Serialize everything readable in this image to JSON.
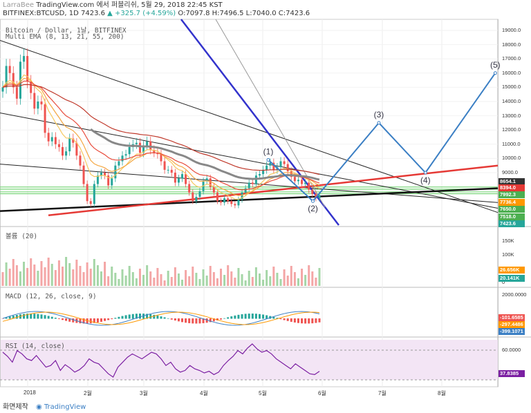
{
  "header": {
    "line1_user": "LarraBee",
    "line1_text": "TradingView.com 에서 퍼블리쉬, 5월 29, 2018 22:45 KST",
    "symbol": "BITFINEX:BTCUSD, 1D",
    "last": "7423.6",
    "change": "▲ +325.7 (+4.59%)",
    "ohlc": "O:7097.8 H:7496.5 L:7040.0 C:7423.6"
  },
  "price_legend": {
    "title": "Bitcoin / Dollar, 1날, BITFINEX",
    "ema": "Multi EMA (8, 13, 21, 55, 200)"
  },
  "volume_legend": "볼륨 (20)",
  "macd_legend": "MACD (12, 26, close, 9)",
  "rsi_legend": "RSI (14, close)",
  "footer": {
    "left": "화면제작",
    "brand": "TradingView"
  },
  "colors": {
    "up": "#26a69a",
    "down": "#ef5350",
    "wave": "#3b7fc4",
    "trend_red": "#e53935",
    "trend_blue": "#3333cc",
    "ema200": "#888888",
    "support_green": "#7bd67b"
  },
  "chart_data": [
    {
      "type": "candlestick",
      "title": "Bitcoin / Dollar, 1날, BITFINEX",
      "y_ticks": [
        "19000.0",
        "18000.0",
        "17000.0",
        "16000.0",
        "15000.0",
        "14000.0",
        "13000.0",
        "12000.0",
        "11000.0",
        "10000.0",
        "9000.0"
      ],
      "price_boxes": [
        {
          "label": "8654.1",
          "color": "#333333"
        },
        {
          "label": "8394.0",
          "color": "#e53935"
        },
        {
          "label": "7992.3",
          "color": "#4caf50"
        },
        {
          "label": "7736.4",
          "color": "#ff9800"
        },
        {
          "label": "7650.0",
          "color": "#4caf50"
        },
        {
          "label": "7518.0",
          "color": "#4caf50"
        },
        {
          "label": "7423.6",
          "color": "#26a69a"
        }
      ],
      "x_ticks": [
        "2018",
        "2월",
        "3월",
        "4월",
        "5월",
        "6월",
        "7월",
        "8월"
      ],
      "approx_close": [
        15000,
        16500,
        16000,
        15000,
        14200,
        16800,
        17200,
        15400,
        14600,
        13500,
        14000,
        13800,
        11800,
        11200,
        11500,
        11000,
        10800,
        10200,
        10500,
        11400,
        11100,
        10200,
        9500,
        8200,
        7000,
        6800,
        8200,
        8800,
        9000,
        8800,
        8100,
        8600,
        9500,
        9800,
        10200,
        10300,
        10800,
        11000,
        11100,
        10400,
        10900,
        11200,
        10600,
        10400,
        10300,
        9800,
        9200,
        9200,
        9000,
        8300,
        8600,
        8900,
        8200,
        7600,
        7000,
        7300,
        7700,
        8400,
        8600,
        8000,
        7600,
        7000,
        6900,
        7200,
        7000,
        6800,
        6700,
        7100,
        7600,
        7900,
        8300,
        8200,
        8800,
        8900,
        9200,
        9500,
        9700,
        9200,
        9400,
        9800,
        9600,
        9100,
        8700,
        8400,
        8500,
        8200,
        8300,
        7800,
        7500,
        7200,
        7423
      ]
    },
    {
      "type": "annotation",
      "name": "Elliott wave projection",
      "points": [
        {
          "label": "(1)",
          "price": 9900,
          "date": "2018-05-05"
        },
        {
          "label": "(2)",
          "price": 7000,
          "date": "2018-05-28"
        },
        {
          "label": "(3)",
          "price": 12500,
          "date": "2018-07-01"
        },
        {
          "label": "(4)",
          "price": 9000,
          "date": "2018-07-25"
        },
        {
          "label": "(5)",
          "price": 16000,
          "date": "2018-08-30"
        }
      ]
    },
    {
      "type": "bar",
      "title": "볼륨 (20)",
      "y_ticks": [
        "150K",
        "100K",
        "50K",
        "0"
      ],
      "boxes": [
        {
          "label": "26.656K",
          "color": "#ff9800"
        },
        {
          "label": "20.141K",
          "color": "#26a69a"
        }
      ]
    },
    {
      "type": "line",
      "title": "MACD (12, 26, close, 9)",
      "y_ticks": [
        "2000.0000",
        "0.0000"
      ],
      "boxes": [
        {
          "label": "-101.6585",
          "color": "#ef5350"
        },
        {
          "label": "-297.4486",
          "color": "#ff9800"
        },
        {
          "label": "-399.1071",
          "color": "#3b7fc4"
        }
      ]
    },
    {
      "type": "line",
      "title": "RSI (14, close)",
      "y_ticks": [
        "60.0000"
      ],
      "boxes": [
        {
          "label": "37.8385",
          "color": "#7b1fa2"
        }
      ],
      "values": [
        60,
        55,
        48,
        62,
        58,
        52,
        50,
        56,
        49,
        42,
        44,
        50,
        38,
        45,
        41,
        36,
        39,
        44,
        52,
        48,
        46,
        40,
        34,
        30,
        42,
        48,
        54,
        58,
        55,
        52,
        56,
        60,
        58,
        52,
        44,
        48,
        40,
        36,
        38,
        44,
        40,
        38,
        35,
        37,
        33,
        36,
        44,
        50,
        55,
        62,
        58,
        65,
        70,
        64,
        60,
        62,
        58,
        52,
        48,
        44,
        40,
        46,
        42,
        38,
        34,
        33,
        37
      ]
    }
  ]
}
